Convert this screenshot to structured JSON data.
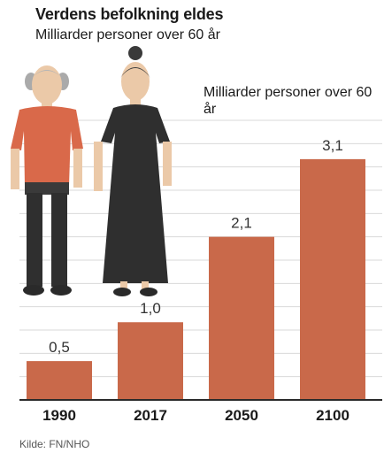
{
  "title": "Verdens befolkning eldes",
  "subtitle": "Milliarder personer over 60 år",
  "inner_label": "Milliarder personer over 60 år",
  "source": "Kilde: FN/NHO",
  "colors": {
    "bar": "#c9694a",
    "grid": "#d9d9d9",
    "shirt": "#d9694a",
    "dress": "#2f2f2f",
    "skin": "#ebc9a8"
  },
  "illustration": {
    "icon_names": [
      "elderly-man-icon",
      "elderly-woman-icon"
    ]
  },
  "chart_data": {
    "type": "bar",
    "categories": [
      "1990",
      "2017",
      "2050",
      "2100"
    ],
    "values": [
      0.5,
      1.0,
      2.1,
      3.1
    ],
    "value_labels": [
      "0,5",
      "1,0",
      "2,1",
      "3,1"
    ],
    "title": "Verdens befolkning eldes",
    "subtitle": "Milliarder personer over 60 år",
    "ylabel": "Milliarder personer over 60 år",
    "xlabel": "",
    "ylim": [
      0,
      3.6
    ],
    "grid": true,
    "legend": "none"
  }
}
